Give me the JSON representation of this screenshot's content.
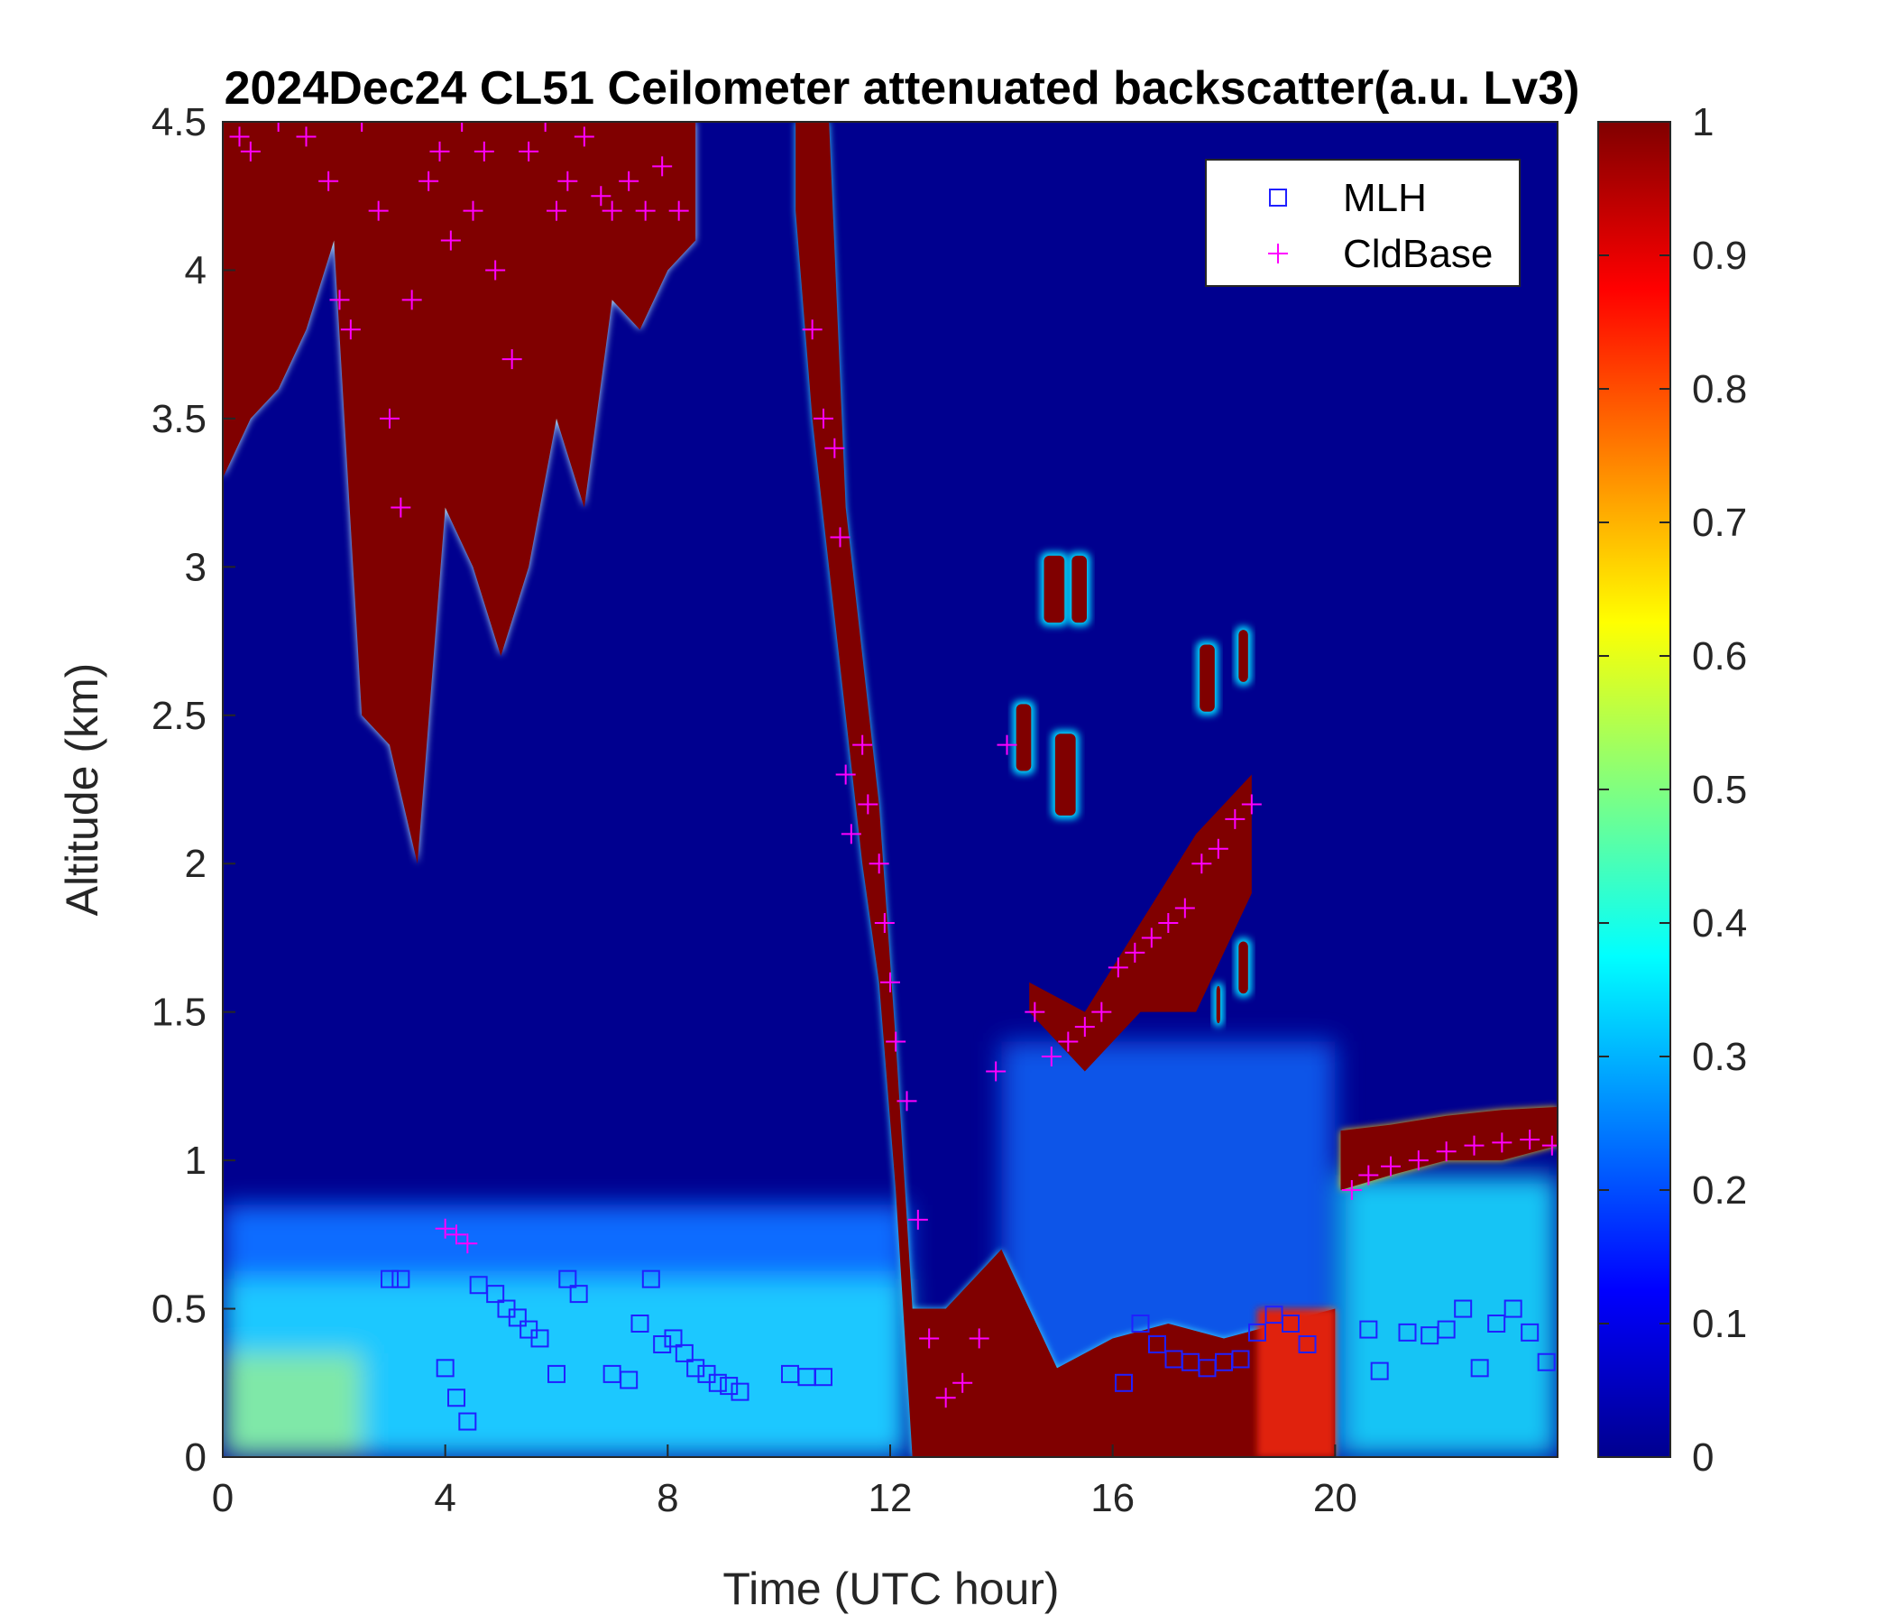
{
  "chart_data": {
    "type": "heatmap",
    "title": "2024Dec24 CL51 Ceilometer attenuated backscatter(a.u. Lv3)",
    "xlabel": "Time (UTC hour)",
    "ylabel": "Altitude (km)",
    "xlim": [
      0,
      24
    ],
    "ylim": [
      0,
      4.5
    ],
    "x_ticks": [
      0,
      4,
      8,
      12,
      16,
      20
    ],
    "x_tick_labels": [
      "0",
      "4",
      "8",
      "12",
      "16",
      "20"
    ],
    "y_ticks": [
      0,
      0.5,
      1,
      1.5,
      2,
      2.5,
      3,
      3.5,
      4,
      4.5
    ],
    "y_tick_labels": [
      "0",
      "0.5",
      "1",
      "1.5",
      "2",
      "2.5",
      "3",
      "3.5",
      "4",
      "4.5"
    ],
    "colorbar": {
      "colormap": "jet",
      "range": [
        0,
        1
      ],
      "ticks": [
        0,
        0.1,
        0.2,
        0.3,
        0.4,
        0.5,
        0.6,
        0.7,
        0.8,
        0.9,
        1
      ],
      "tick_labels": [
        "0",
        "0.1",
        "0.2",
        "0.3",
        "0.4",
        "0.5",
        "0.6",
        "0.7",
        "0.8",
        "0.9",
        "1"
      ],
      "colors": [
        "#00008f",
        "#0000ff",
        "#0080ff",
        "#00ffff",
        "#80ff80",
        "#ffff00",
        "#ff8000",
        "#ff0000",
        "#800000"
      ]
    },
    "legend": {
      "placement": "top-right",
      "entries": [
        {
          "label": "MLH",
          "marker": "square",
          "color": "#2020ff"
        },
        {
          "label": "CldBase",
          "marker": "plus",
          "color": "#ff00ff"
        }
      ]
    },
    "cloud_regions": [
      {
        "t": [
          0,
          0.5,
          1,
          1.5,
          2,
          2.5,
          3,
          3.5,
          4,
          4.5,
          5,
          5.5,
          6,
          6.5,
          7,
          7.5,
          8,
          8.5
        ],
        "bottom": [
          3.3,
          3.5,
          3.6,
          3.8,
          4.1,
          2.5,
          2.4,
          2.0,
          3.2,
          3.0,
          2.7,
          3.0,
          3.5,
          3.2,
          3.9,
          3.8,
          4.0,
          4.1
        ],
        "top": 4.5
      },
      {
        "t": [
          10.3,
          10.6,
          10.9,
          11.2,
          11.5,
          11.8,
          12.1,
          12.4,
          13,
          14,
          15,
          16,
          17,
          18,
          19,
          20
        ],
        "bottom": [
          4.2,
          3.5,
          3.0,
          2.5,
          2.0,
          1.6,
          0.9,
          0.0,
          0.0,
          0.0,
          0.0,
          0.0,
          0.0,
          0.0,
          0.0,
          0.0
        ],
        "top_line": [
          4.5,
          4.5,
          4.5,
          3.2,
          2.7,
          2.2,
          1.4,
          0.5,
          0.5,
          0.7,
          0.3,
          0.4,
          0.45,
          0.4,
          0.45,
          0.5
        ]
      },
      {
        "t": [
          14.5,
          15.5,
          16.5,
          17.5,
          18.5
        ],
        "bottom": [
          1.5,
          1.3,
          1.5,
          1.5,
          1.9
        ],
        "top": [
          1.6,
          1.5,
          1.8,
          2.1,
          2.3
        ]
      },
      {
        "t": [
          20.1,
          21,
          22,
          23,
          24
        ],
        "bottom": [
          0.9,
          0.95,
          1.0,
          1.0,
          1.05
        ],
        "top": [
          1.1,
          1.12,
          1.15,
          1.17,
          1.18
        ]
      }
    ],
    "series": [
      {
        "name": "MLH",
        "marker": "square",
        "x": [
          3.0,
          3.2,
          4.0,
          4.2,
          4.4,
          4.6,
          4.9,
          5.1,
          5.3,
          5.5,
          5.7,
          6.0,
          6.2,
          6.4,
          7.0,
          7.3,
          7.5,
          7.7,
          7.9,
          8.1,
          8.3,
          8.5,
          8.7,
          8.9,
          9.1,
          9.3,
          10.2,
          10.5,
          10.8,
          16.2,
          16.5,
          16.8,
          17.1,
          17.4,
          17.7,
          18.0,
          18.3,
          18.6,
          18.9,
          19.2,
          19.5,
          20.6,
          20.8,
          21.3,
          21.7,
          22.0,
          22.3,
          22.6,
          22.9,
          23.2,
          23.5,
          23.8
        ],
        "y": [
          0.6,
          0.6,
          0.3,
          0.2,
          0.12,
          0.58,
          0.55,
          0.5,
          0.47,
          0.43,
          0.4,
          0.28,
          0.6,
          0.55,
          0.28,
          0.26,
          0.45,
          0.6,
          0.38,
          0.4,
          0.35,
          0.3,
          0.28,
          0.25,
          0.24,
          0.22,
          0.28,
          0.27,
          0.27,
          0.25,
          0.45,
          0.38,
          0.33,
          0.32,
          0.3,
          0.32,
          0.33,
          0.42,
          0.48,
          0.45,
          0.38,
          0.43,
          0.29,
          0.42,
          0.41,
          0.43,
          0.5,
          0.3,
          0.45,
          0.5,
          0.42,
          0.32
        ]
      },
      {
        "name": "CldBase",
        "marker": "plus",
        "x": [
          0.3,
          0.5,
          1.0,
          1.5,
          1.9,
          2.1,
          2.3,
          2.5,
          2.8,
          3.0,
          3.2,
          3.4,
          3.7,
          3.9,
          4.1,
          4.3,
          4.5,
          4.7,
          4.9,
          5.2,
          5.5,
          5.8,
          6.0,
          6.2,
          6.5,
          6.8,
          7.0,
          7.3,
          7.6,
          7.9,
          8.2,
          10.6,
          10.8,
          11.0,
          11.1,
          11.2,
          11.3,
          11.5,
          11.6,
          11.8,
          11.9,
          12.0,
          12.1,
          12.3,
          12.5,
          12.7,
          13.0,
          13.3,
          13.6,
          13.9,
          14.1,
          14.6,
          14.9,
          15.2,
          15.5,
          15.8,
          16.1,
          16.4,
          16.7,
          17.0,
          17.3,
          17.6,
          17.9,
          18.2,
          18.5,
          20.3,
          20.6,
          21.0,
          21.5,
          22.0,
          22.5,
          23.0,
          23.5,
          23.9
        ],
        "y": [
          4.45,
          4.4,
          4.5,
          4.45,
          4.3,
          3.9,
          3.8,
          4.5,
          4.2,
          3.5,
          3.2,
          3.9,
          4.3,
          4.4,
          4.1,
          4.5,
          4.2,
          4.4,
          4.0,
          3.7,
          4.4,
          4.5,
          4.2,
          4.3,
          4.45,
          4.25,
          4.2,
          4.3,
          4.2,
          4.35,
          4.2,
          3.8,
          3.5,
          3.4,
          3.1,
          2.3,
          2.1,
          2.4,
          2.2,
          2.0,
          1.8,
          1.6,
          1.4,
          1.2,
          0.8,
          0.4,
          0.2,
          0.25,
          0.4,
          1.3,
          2.4,
          1.5,
          1.35,
          1.4,
          1.45,
          1.5,
          1.65,
          1.7,
          1.75,
          1.8,
          1.85,
          2.0,
          2.05,
          2.15,
          2.2,
          0.9,
          0.95,
          0.98,
          1.0,
          1.03,
          1.05,
          1.06,
          1.07,
          1.05
        ],
        "extra": {
          "low_clouds_x": [
            4.0,
            4.2,
            4.4
          ],
          "low_clouds_y": [
            0.77,
            0.75,
            0.72
          ]
        }
      }
    ]
  }
}
